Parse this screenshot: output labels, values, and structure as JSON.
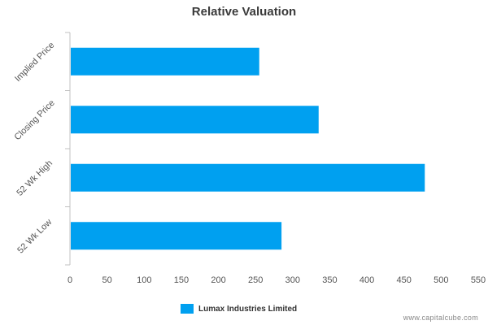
{
  "colors": {
    "series": "#00a0f0",
    "axis": "#c0c0c0",
    "tick_text": "#555555"
  },
  "watermark": "www.capitalcube.com",
  "chart_data": {
    "type": "bar",
    "orientation": "horizontal",
    "title": "Relative Valuation",
    "categories": [
      "Implied Price",
      "Closing Price",
      "52 Wk High",
      "52 Wk Low"
    ],
    "series": [
      {
        "name": "Lumax Industries Limited",
        "values": [
          255,
          335,
          478,
          285
        ]
      }
    ],
    "xlim": [
      0,
      550
    ],
    "xticks": [
      0,
      50,
      100,
      150,
      200,
      250,
      300,
      350,
      400,
      450,
      500,
      550
    ],
    "xlabel": "",
    "ylabel": "",
    "grid": false,
    "legend": "bottom-center"
  }
}
